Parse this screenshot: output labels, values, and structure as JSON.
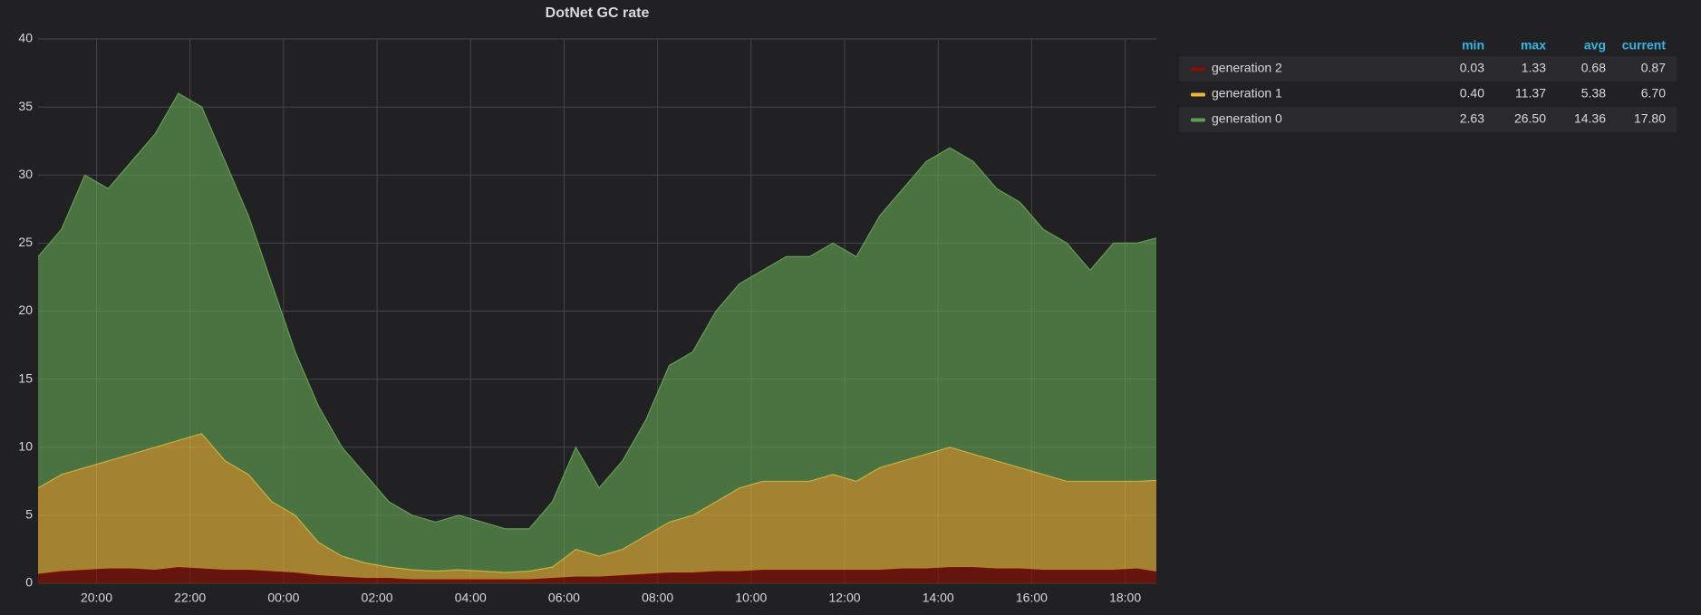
{
  "chart_data": {
    "type": "area",
    "stacked": true,
    "title": "DotNet GC rate",
    "x": [
      "18:45",
      "19:15",
      "19:45",
      "20:15",
      "20:45",
      "21:15",
      "21:45",
      "22:15",
      "22:45",
      "23:15",
      "23:45",
      "00:15",
      "00:45",
      "01:15",
      "01:45",
      "02:15",
      "02:45",
      "03:15",
      "03:45",
      "04:15",
      "04:45",
      "05:15",
      "05:45",
      "06:15",
      "06:45",
      "07:15",
      "07:45",
      "08:15",
      "08:45",
      "09:15",
      "09:45",
      "10:15",
      "10:45",
      "11:15",
      "11:45",
      "12:15",
      "12:45",
      "13:15",
      "13:45",
      "14:15",
      "14:45",
      "15:15",
      "15:45",
      "16:15",
      "16:45",
      "17:15",
      "17:45",
      "18:15",
      "18:40"
    ],
    "xticks": [
      "20:00",
      "22:00",
      "00:00",
      "02:00",
      "04:00",
      "06:00",
      "08:00",
      "10:00",
      "12:00",
      "14:00",
      "16:00",
      "18:00"
    ],
    "ylim": [
      0,
      40
    ],
    "yticks": [
      0,
      5,
      10,
      15,
      20,
      25,
      30,
      35,
      40
    ],
    "grid": true,
    "legend_columns": [
      "min",
      "max",
      "avg",
      "current"
    ],
    "series": [
      {
        "name": "generation 2",
        "color": "#890f02",
        "stats": [
          "0.03",
          "1.33",
          "0.68",
          "0.87"
        ],
        "values": [
          0.7,
          0.9,
          1.0,
          1.1,
          1.1,
          1.0,
          1.2,
          1.1,
          1.0,
          1.0,
          0.9,
          0.8,
          0.6,
          0.5,
          0.4,
          0.4,
          0.3,
          0.3,
          0.3,
          0.3,
          0.3,
          0.3,
          0.4,
          0.5,
          0.5,
          0.6,
          0.7,
          0.8,
          0.8,
          0.9,
          0.9,
          1.0,
          1.0,
          1.0,
          1.0,
          1.0,
          1.0,
          1.1,
          1.1,
          1.2,
          1.2,
          1.1,
          1.1,
          1.0,
          1.0,
          1.0,
          1.0,
          1.1,
          0.87
        ]
      },
      {
        "name": "generation 1",
        "color": "#eab839",
        "stats": [
          "0.40",
          "11.37",
          "5.38",
          "6.70"
        ],
        "values": [
          6.3,
          7.1,
          7.5,
          7.9,
          8.4,
          9.0,
          9.3,
          9.9,
          8.0,
          7.0,
          5.1,
          4.2,
          2.4,
          1.5,
          1.1,
          0.8,
          0.7,
          0.6,
          0.7,
          0.6,
          0.5,
          0.6,
          0.8,
          2.0,
          1.5,
          1.9,
          2.8,
          3.7,
          4.2,
          5.1,
          6.1,
          6.5,
          6.5,
          6.5,
          7.0,
          6.5,
          7.5,
          7.9,
          8.4,
          8.8,
          8.3,
          7.9,
          7.4,
          7.0,
          6.5,
          6.5,
          6.5,
          6.4,
          6.7
        ]
      },
      {
        "name": "generation 0",
        "color": "#629e51",
        "stats": [
          "2.63",
          "26.50",
          "14.36",
          "17.80"
        ],
        "values": [
          17,
          18,
          21.5,
          20,
          21.5,
          23,
          25.5,
          24,
          22,
          19,
          16,
          12,
          10,
          8,
          6.5,
          4.8,
          4,
          3.6,
          4,
          3.6,
          3.2,
          3.1,
          4.8,
          7.5,
          5,
          6.5,
          8.5,
          11.5,
          12,
          14,
          15,
          15.5,
          16.5,
          16.5,
          17,
          16.5,
          18.5,
          20,
          21.5,
          22,
          21.5,
          20,
          19.5,
          18,
          17.5,
          15.5,
          17.5,
          17.5,
          17.8
        ]
      }
    ]
  }
}
